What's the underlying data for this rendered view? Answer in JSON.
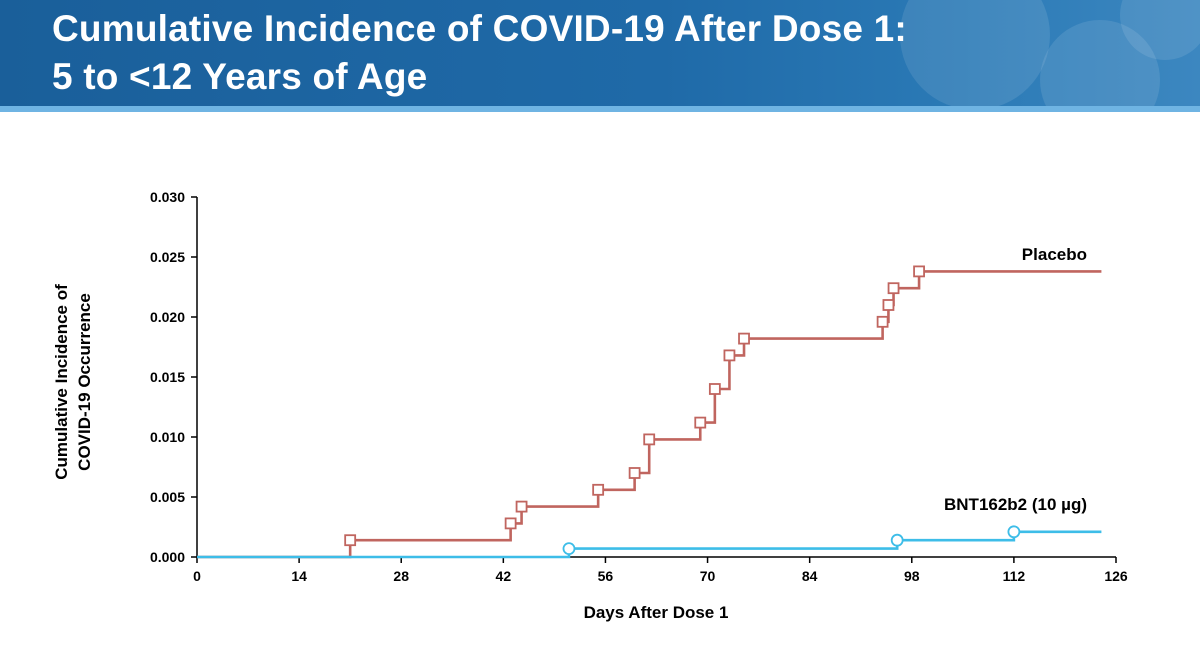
{
  "title_line1": "Cumulative Incidence of COVID-19 After Dose 1:",
  "title_line2": "5 to <12 Years of Age",
  "chart_data": {
    "type": "line",
    "subtype": "step",
    "xlabel": "Days After Dose 1",
    "ylabel": "Cumulative Incidence of COVID-19 Occurrence",
    "xlim": [
      0,
      126
    ],
    "ylim": [
      0,
      0.03
    ],
    "x_ticks": [
      0,
      14,
      28,
      42,
      56,
      70,
      84,
      98,
      112,
      126
    ],
    "y_ticks": [
      0.0,
      0.005,
      0.01,
      0.015,
      0.02,
      0.025,
      0.03
    ],
    "y_tick_labels": [
      "0.000",
      "0.005",
      "0.010",
      "0.015",
      "0.020",
      "0.025",
      "0.030"
    ],
    "grid": false,
    "series": [
      {
        "name": "Placebo",
        "color": "#c0655f",
        "marker": "square",
        "label_text": "Placebo",
        "x": [
          0,
          21,
          43,
          44.5,
          55,
          60,
          62,
          69,
          71,
          73,
          75,
          94,
          94.8,
          95.5,
          99,
          124
        ],
        "y": [
          0,
          0.0014,
          0.0028,
          0.0042,
          0.0056,
          0.007,
          0.0098,
          0.0112,
          0.014,
          0.0168,
          0.0182,
          0.0196,
          0.021,
          0.0224,
          0.0238,
          0.0238
        ],
        "markers_x": [
          21,
          43,
          44.5,
          55,
          60,
          62,
          69,
          71,
          73,
          75,
          94,
          94.8,
          95.5,
          99
        ],
        "markers_y": [
          0.0014,
          0.0028,
          0.0042,
          0.0056,
          0.007,
          0.0098,
          0.0112,
          0.014,
          0.0168,
          0.0182,
          0.0196,
          0.021,
          0.0224,
          0.0238
        ]
      },
      {
        "name": "BNT162b2 (10 µg)",
        "color": "#3dbde8",
        "marker": "circle",
        "label_text": "BNT162b2 (10 µg)",
        "x": [
          0,
          51,
          96,
          112,
          124
        ],
        "y": [
          0,
          0.0007,
          0.0014,
          0.0021,
          0.0021
        ],
        "markers_x": [
          51,
          96,
          112
        ],
        "markers_y": [
          0.0007,
          0.0014,
          0.0021
        ]
      }
    ]
  }
}
